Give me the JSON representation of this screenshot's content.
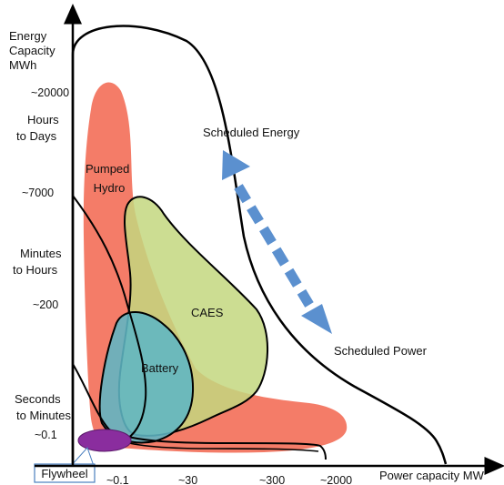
{
  "y_axis": {
    "title_lines": [
      "Energy",
      "Capacity",
      "MWh"
    ],
    "ticks": [
      "~20000",
      "~7000",
      "~200",
      "~0.1"
    ],
    "bands": [
      [
        "Hours",
        "to Days"
      ],
      [
        "Minutes",
        "to Hours"
      ],
      [
        "Seconds",
        "to Minutes"
      ]
    ]
  },
  "x_axis": {
    "title": "Power capacity MW",
    "ticks": [
      "~0.1",
      "~30",
      "~300",
      "~2000"
    ]
  },
  "regions": {
    "pumped_hydro": {
      "lines": [
        "Pumped",
        "Hydro"
      ],
      "color": "#f47c68"
    },
    "caes": {
      "label": "CAES",
      "color": "#c3d77f"
    },
    "battery": {
      "label": "Battery",
      "color": "#5fb6c4"
    },
    "flywheel": {
      "label": "Flywheel",
      "color": "#8a2d9e"
    }
  },
  "annotations": {
    "scheduled_energy": "Scheduled Energy",
    "scheduled_power": "Scheduled Power",
    "arrow_color": "#5b90cf"
  }
}
